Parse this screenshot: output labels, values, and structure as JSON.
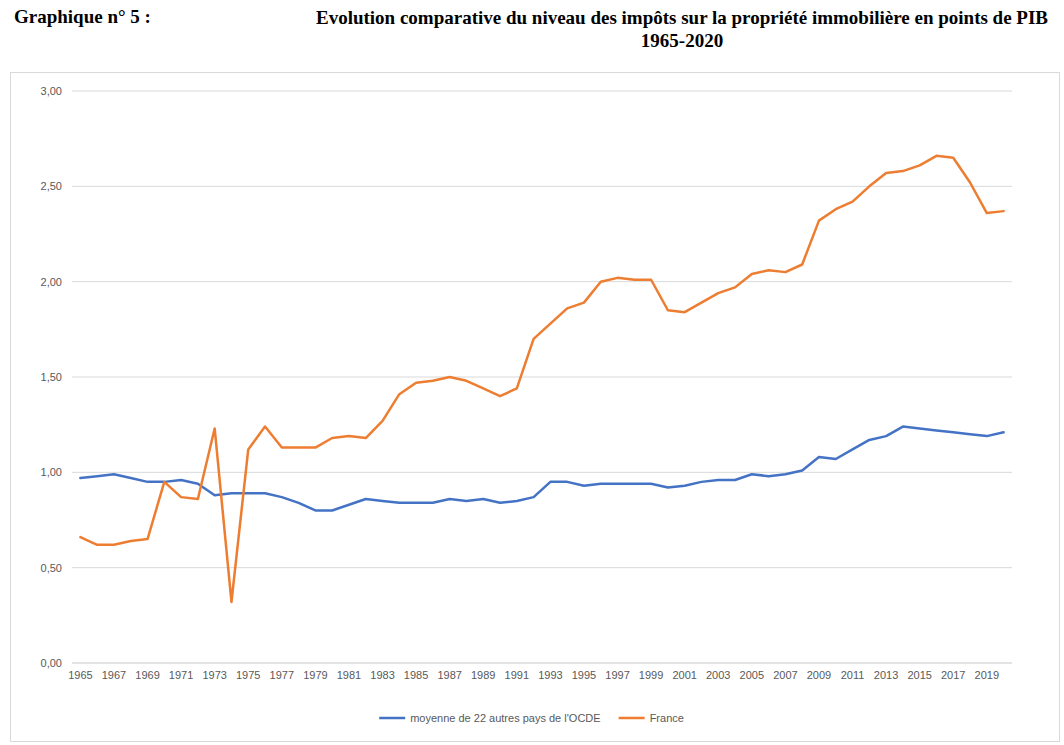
{
  "chart_data": {
    "type": "line",
    "figure_label": "Graphique n° 5 :",
    "title": "Evolution comparative du niveau des impôts sur la propriété immobilière en points de PIB 1965-2020",
    "categories": [
      "1965",
      null,
      "1967",
      null,
      "1969",
      null,
      "1971",
      null,
      "1973",
      null,
      "1975",
      null,
      "1977",
      null,
      "1979",
      null,
      "1981",
      null,
      "1983",
      null,
      "1985",
      null,
      "1987",
      null,
      "1989",
      null,
      "1991",
      null,
      "1993",
      null,
      "1995",
      null,
      "1997",
      null,
      "1999",
      null,
      "2001",
      null,
      "2003",
      null,
      "2005",
      null,
      "2007",
      null,
      "2009",
      null,
      "2011",
      null,
      "2013",
      null,
      "2015",
      null,
      "2017",
      null,
      "2019",
      null
    ],
    "series": [
      {
        "name": "moyenne de 22 autres pays de l'OCDE",
        "color": "#4472c4",
        "values": [
          0.97,
          0.98,
          0.99,
          0.97,
          0.95,
          0.95,
          0.96,
          0.94,
          0.88,
          0.89,
          0.89,
          0.89,
          0.87,
          0.84,
          0.8,
          0.8,
          0.83,
          0.86,
          0.85,
          0.84,
          0.84,
          0.84,
          0.86,
          0.85,
          0.86,
          0.84,
          0.85,
          0.87,
          0.95,
          0.95,
          0.93,
          0.94,
          0.94,
          0.94,
          0.94,
          0.92,
          0.93,
          0.95,
          0.96,
          0.96,
          0.99,
          0.98,
          0.99,
          1.01,
          1.08,
          1.07,
          1.12,
          1.17,
          1.19,
          1.24,
          1.23,
          1.22,
          1.21,
          1.2,
          1.19,
          1.21
        ]
      },
      {
        "name": "France",
        "color": "#ed7d31",
        "values": [
          0.66,
          0.62,
          0.62,
          0.64,
          0.65,
          0.95,
          0.87,
          0.86,
          1.23,
          0.32,
          1.12,
          1.24,
          1.13,
          1.13,
          1.13,
          1.18,
          1.19,
          1.18,
          1.27,
          1.41,
          1.47,
          1.48,
          1.5,
          1.48,
          1.44,
          1.4,
          1.44,
          1.7,
          1.78,
          1.86,
          1.89,
          2.0,
          2.02,
          2.01,
          2.01,
          1.85,
          1.84,
          1.89,
          1.94,
          1.97,
          2.04,
          2.06,
          2.05,
          2.09,
          2.32,
          2.38,
          2.42,
          2.5,
          2.57,
          2.58,
          2.61,
          2.66,
          2.65,
          2.52,
          2.36,
          2.37
        ]
      }
    ],
    "ylim": [
      0,
      3
    ],
    "yticks": [
      {
        "value": 0,
        "label": "0,00"
      },
      {
        "value": 0.5,
        "label": "0,50"
      },
      {
        "value": 1,
        "label": "1,00"
      },
      {
        "value": 1.5,
        "label": "1,50"
      },
      {
        "value": 2,
        "label": "2,00"
      },
      {
        "value": 2.5,
        "label": "2,50"
      },
      {
        "value": 3,
        "label": "3,00"
      }
    ],
    "grid": true,
    "legend": "bottom"
  }
}
